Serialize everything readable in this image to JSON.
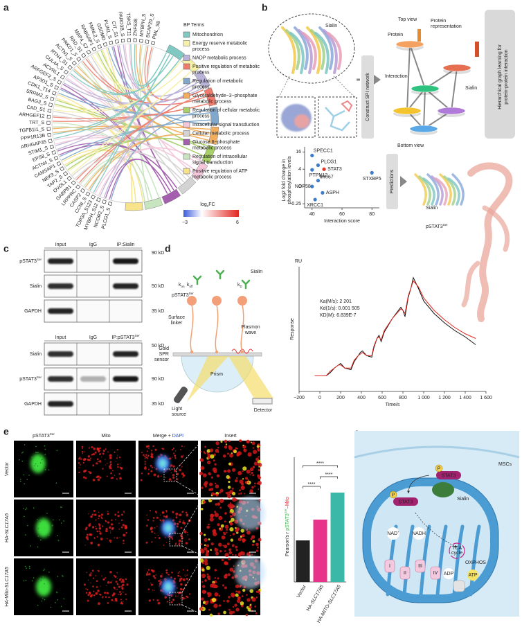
{
  "panel_a": {
    "label": "a",
    "legend_title": "BP Terms",
    "terms": [
      {
        "label": [
          "Mitochondrion"
        ],
        "color": "#7fc9c2"
      },
      {
        "label": [
          "Energy reserve metabolic",
          "process"
        ],
        "color": "#f6f0a8"
      },
      {
        "label": [
          "NADP metabolic process"
        ],
        "color": "#b9b4d8"
      },
      {
        "label": [
          "Positive regulation of metabolic",
          "process"
        ],
        "color": "#ee7d6f"
      },
      {
        "label": [
          "Regulation of metabolic",
          "process"
        ],
        "color": "#7fa8cc"
      },
      {
        "label": [
          "Glyceraldehyde−3−phosphate",
          "metabolic process"
        ],
        "color": "#f2ae5e"
      },
      {
        "label": [
          "Regulation of cellular metabolic",
          "process"
        ],
        "color": "#a9cf6a"
      },
      {
        "label": [
          "Intracellular signal transduction"
        ],
        "color": "#f4c6da"
      },
      {
        "label": [
          "Cellular metabolic process"
        ],
        "color": "#d3d3d3"
      },
      {
        "label": [
          "Glucose 6−phosphate",
          "metabolic process"
        ],
        "color": "#a45fae"
      },
      {
        "label": [
          "Regulation of intracellular",
          "signal transduction"
        ],
        "color": "#c7e6c0"
      },
      {
        "label": [
          "Positive regulation of ATP",
          "metabolic process"
        ],
        "color": "#f7e48a"
      }
    ],
    "colorbar": {
      "title": {
        "text": "log",
        "sub": "2",
        "post": "FC"
      },
      "ticks": [
        "−3",
        "6"
      ]
    },
    "genes": [
      "PML_S8",
      "BCAP29_S",
      "MYBPH_S",
      "ZNF638",
      "TSKS_T11",
      "PARD3B_S",
      "CIT_S1",
      "PLIN1_S",
      "GSDMD",
      "FMNL2_S",
      "RABGAP1",
      "MAP4_S7",
      "RAD_S1",
      "PRKD1_S",
      "ACTN1_S",
      "RTN4_S1",
      "CUL4A_S",
      "ACVRL1",
      "ARFGEF2_S",
      "AP3D1_S",
      "CDK1_T14",
      "SRRM2_S",
      "BAG3_S",
      "CAD_S1",
      "ARHGEF12",
      "TRT_S",
      "TGFB1I1_S",
      "PPP1R13B",
      "ARHGAP35",
      "STIM1_S",
      "EPS8_S",
      "ACTN4_S",
      "CAMSAP1",
      "NEK9_S",
      "TAP2_S",
      "OVOL1",
      "GABPB1",
      "LRPPRC",
      "CASP2",
      "CCNI_S",
      "TOP3A_S123",
      "MYBPH_S12",
      "NCOR2_S",
      "PLCG1_S"
    ]
  },
  "panel_b": {
    "label": "b",
    "sialin": "Sialin",
    "top_view": "Top view",
    "protein": "Protein",
    "protein_representation": [
      "Protein",
      "representation"
    ],
    "interaction": "Interaction",
    "bottom_view": "Bottom view",
    "construct": "Construct SPI network",
    "hierarchical": [
      "Hierarchical graph learning for",
      "protein-protein interaction"
    ],
    "predictions": "Predictions",
    "pstat3": {
      "text": "pSTAT3",
      "sup": "Ser"
    },
    "scatter": {
      "type": "scatter",
      "ylabel": [
        "Log2 fold change in",
        "phosphorylation levels"
      ],
      "xlabel": "Interaction score",
      "xlim": [
        35,
        85
      ],
      "ylim": [
        0.18,
        24
      ],
      "log_y": true,
      "xticks": [
        40,
        60,
        80
      ],
      "yticks": [
        16,
        4,
        1,
        0.25
      ],
      "labels": [
        "SPECC1",
        "PLCG1",
        "STAT3",
        "PTPN12",
        "MKI67",
        "NOP58",
        "ASPH",
        "XRCC1",
        "STXBP5"
      ],
      "x": [
        40,
        44,
        48,
        40,
        44,
        40,
        47,
        42,
        80
      ],
      "y": [
        12,
        5.5,
        4,
        3.8,
        1.6,
        1,
        0.6,
        0.35,
        3
      ],
      "colors": [
        "#3d7cc9",
        "#3d7cc9",
        "#e03a2f",
        "#3d7cc9",
        "#3d7cc9",
        "#3d7cc9",
        "#3d7cc9",
        "#3d7cc9",
        "#3d7cc9"
      ]
    }
  },
  "panel_c": {
    "label": "c",
    "blot1": {
      "lanes": [
        "Input",
        "IgG",
        "IP:Sialin"
      ],
      "rows": [
        {
          "text": "pSTAT3",
          "sup": "Ser"
        },
        "Sialin",
        "GAPDH"
      ],
      "sizes": [
        "90 kD",
        "50 kD",
        "35 kD"
      ]
    },
    "blot2": {
      "lanes": [
        "Input",
        "IgG",
        {
          "text": "IP:pSTAT3",
          "sup": "Ser"
        }
      ],
      "rows": [
        "Sialin",
        {
          "text": "pSTAT3",
          "sup": "Ser"
        },
        "GAPDH"
      ],
      "sizes": [
        "50 kD",
        "90 kD",
        "35 kD"
      ]
    }
  },
  "panel_d": {
    "label": "d",
    "sialin": "Sialin",
    "kon": {
      "text": "k",
      "sub": "on"
    },
    "koff": {
      "text": "k",
      "sub": "off"
    },
    "kd": {
      "text": "k",
      "sub": "D"
    },
    "pstat3": {
      "text": "pSTAT3",
      "sup": "Ser"
    },
    "surface_linker": [
      "Surface",
      "linker"
    ],
    "plasmon_wave": [
      "Plasmon",
      "wave"
    ],
    "gold": [
      "Gold",
      "SPR",
      "sensor"
    ],
    "prism": "Prism",
    "light_source": [
      "Light",
      "source"
    ],
    "detector": "Detector",
    "sensorgram": {
      "type": "line",
      "unit": "RU",
      "ylabel": "Response",
      "xlabel": "Time/s",
      "annotations": [
        "Ka(M/s): 2 201",
        "Kd(1/s): 0.001 505",
        "KD(M): 6.839E-7"
      ],
      "xlim": [
        -200,
        1600
      ],
      "ylim": [
        -10,
        70
      ],
      "xticks": [
        {
          "value": -200,
          "label": "−200"
        },
        0,
        200,
        400,
        600,
        800,
        {
          "value": 1000,
          "label": "1 000"
        },
        {
          "value": 1200,
          "label": "1 200"
        },
        {
          "value": 1400,
          "label": "1 400"
        },
        {
          "value": 1600,
          "label": "1 600"
        }
      ],
      "x": [
        -50,
        0,
        60,
        100,
        140,
        180,
        200,
        240,
        300,
        330,
        370,
        390,
        410,
        450,
        500,
        520,
        550,
        570,
        590,
        620,
        700,
        780,
        800,
        820,
        850,
        880,
        900,
        950,
        1000,
        1100,
        1200,
        1300,
        1400,
        1500
      ],
      "series": [
        {
          "color": "#111111",
          "values": [
            0,
            0,
            0,
            2,
            5,
            7,
            8,
            5,
            4,
            9,
            13,
            15,
            16,
            13,
            12,
            18,
            24,
            26,
            22,
            28,
            37,
            44,
            42,
            38,
            50,
            57,
            63,
            56,
            48,
            40,
            34,
            29,
            25,
            20
          ]
        },
        {
          "color": "#e0261f",
          "values": [
            0,
            0,
            0,
            3,
            5,
            7,
            7,
            5,
            5,
            10,
            13,
            14,
            15,
            13,
            13,
            19,
            24,
            25,
            23,
            29,
            37,
            43,
            42,
            40,
            51,
            57,
            61,
            57,
            50,
            42,
            36,
            31,
            27,
            24
          ]
        }
      ]
    }
  },
  "panel_e": {
    "label": "e",
    "columns": [
      {
        "text": "pSTAT3",
        "sup": "Ser"
      },
      {
        "text": "Mito"
      },
      {
        "text": "Merge + ",
        "post": "DAPI"
      },
      {
        "text": "Insert"
      }
    ],
    "column_colors": [
      "#39b54a",
      "#e8262a",
      "#222222",
      "#222222"
    ],
    "rows": [
      "Vector",
      {
        "text": "HA-",
        "italic": "SLC17A5"
      },
      {
        "text": "HA-Mito-",
        "italic": "SLC17A5"
      }
    ],
    "bars": {
      "type": "bar",
      "ylabel": [
        "Pearson's r ",
        "pSTAT3",
        "Ser",
        "–Mito"
      ],
      "categories": [
        "Vector",
        {
          "text": "HA-",
          "italic": "SLC17A5"
        },
        {
          "text": "HA-MITO-",
          "italic": "SLC17A5"
        }
      ],
      "values": [
        0.2,
        0.3,
        0.43
      ],
      "colors": [
        "#222222",
        "#e8338a",
        "#3bb8a8"
      ],
      "ylim": [
        0,
        0.6
      ],
      "significance": [
        "****",
        "****",
        "****"
      ]
    }
  },
  "panel_f": {
    "label": "f",
    "mscs": "MSCs",
    "p": "P",
    "stat3": "STAT3",
    "sialin": "Sialin",
    "nad": {
      "text": "NAD",
      "sup": "+"
    },
    "nadh": "NADH",
    "tca": [
      "TCA",
      "cycle"
    ],
    "oxphos": "OXPHOS",
    "adp": "ADP",
    "atp": "ATP",
    "complexes": [
      "I",
      "II",
      "III",
      "IV"
    ]
  }
}
